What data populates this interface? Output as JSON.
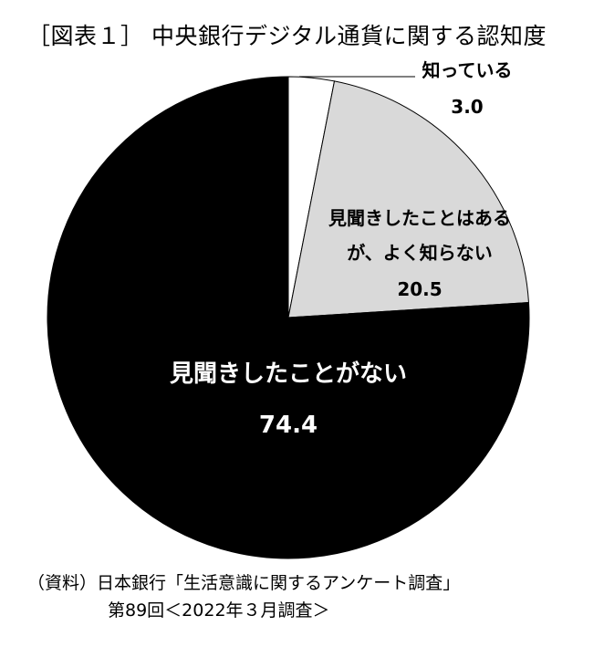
{
  "title": "［図表１］ 中央銀行デジタル通貨に関する認知度",
  "chart_data": {
    "type": "pie",
    "title": "［図表１］ 中央銀行デジタル通貨に関する認知度",
    "slices": [
      {
        "label": "知っている",
        "value": 3.0,
        "value_label": "3.0",
        "color": "#ffffff"
      },
      {
        "label": "見聞きしたことはあるが、よく知らない",
        "value": 20.5,
        "value_label": "20.5",
        "color": "#d9d9d9"
      },
      {
        "label": "見聞きしたことがない",
        "value": 74.4,
        "value_label": "74.4",
        "color": "#000000"
      }
    ],
    "label_lines": {
      "s0": [
        "知っている"
      ],
      "s1": [
        "見聞きしたことはある",
        "が、よく知らない"
      ],
      "s2": [
        "見聞きしたことがない"
      ]
    }
  },
  "source": {
    "line1": "（資料）日本銀行「生活意識に関するアンケート調査」",
    "line2": "第89回＜2022年３月調査＞"
  }
}
